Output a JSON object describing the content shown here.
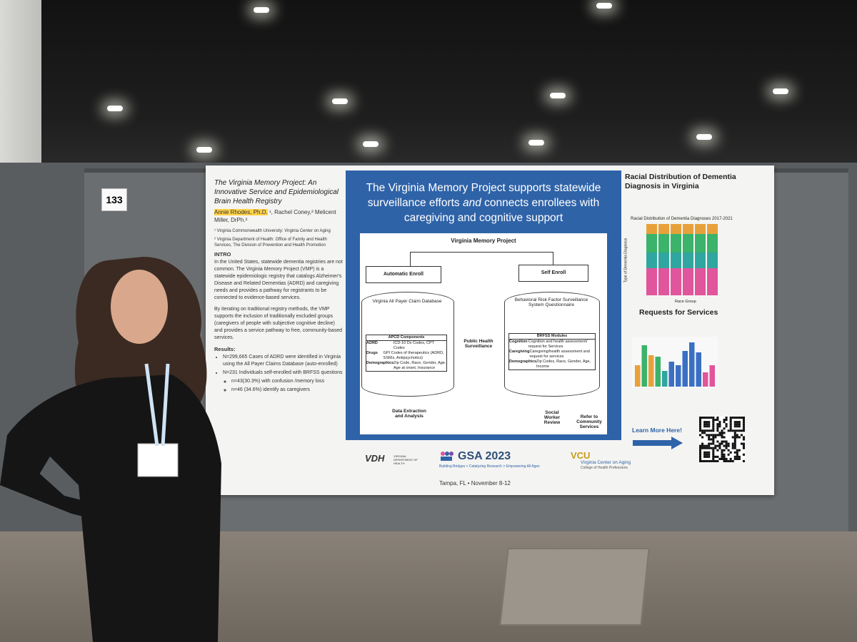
{
  "booth_number": "133",
  "poster": {
    "title": "The Virginia Memory Project: An Innovative Service and Epidemiological Brain Health Registry",
    "authors_highlight": "Annie Rhodes, Ph.D.",
    "authors_rest": "¹, Rachel Coney,² Melicent Miller, DrPh.²",
    "affiliation_1": "¹ Virginia Commonwealth University: Virginia Center on Aging",
    "affiliation_2": "² Virginia Department of Health: Office of Family and Health Services, The Division of Prevention and Health Promotion",
    "intro_heading": "INTRO",
    "intro_p1": "In the United States, statewide dementia registries are not common. The Virginia Memory Project (VMP) is a statewide epidemiologic registry that catalogs Alzheimer's Disease and Related Dementias (ADRD) and caregiving needs and provides a pathway for registrants to be connected to evidence-based services.",
    "intro_p2": "By iterating on traditional registry methods, the VMP supports the inclusion of traditionally excluded groups (caregivers of people with subjective cognitive decline) and provides a service pathway to free, community-based services.",
    "results_heading": "Results:",
    "results": [
      "N=299,665 Cases of ADRD were identified in Virginia using the All Payer Claims Database (auto-enrolled)",
      "N=231 Individuals self-enrolled with BRFSS questions"
    ],
    "sub_results": [
      "n=43(30.3%) with confusion /memory loss",
      "n=46 (34.6%) identify as caregivers"
    ],
    "headline_1": "The Virginia Memory Project supports statewide surveillance efforts ",
    "headline_em": "and",
    "headline_2": " connects enrollees with caregiving and cognitive support",
    "diagram": {
      "title": "Virginia Memory Project",
      "auto": "Automatic Enroll",
      "self": "Self Enroll",
      "apcd": "Virginia All Payer Claim Database",
      "brfss": "Behavioral Risk Factor Surveillance System Questionnaire",
      "apcd_components": "APCD Components",
      "adrd": "ADRD",
      "adrd_val": "ICD-10 Dx Codes, CPT Codes",
      "drugs": "Drugs",
      "drugs_val": "GPI Codes of therapeutics (ADRD, SSRIs, Antipsychotics)",
      "demo": "Demographics",
      "demo_val": "Zip Code, Race, Gender, Age, Age at onset, Insurance",
      "public": "Public Health Surveillance",
      "brfss_modules": "BRFSS Modules",
      "cognition": "Cognition",
      "cognition_val": "Cognition and health assessment/ request for Services",
      "caregiving": "Caregiving",
      "caregiving_val": "Caregiving/health assessment and request for services",
      "demo2_val": "Zip Codes, Race, Gender, Age, Income",
      "extraction": "Data Extraction and Analysis",
      "social": "Social Worker Review",
      "refer": "Refer to Community Services"
    },
    "right_title": "Racial Distribution of Dementia Diagnosis in Virginia",
    "chart1_title": "Racial Distribution of Dementia Diagnoses 2017-2021",
    "chart1_xlabel": "Race Group",
    "chart1_ylabel": "Type of Dementia Diagnosis",
    "requests_title": "Requests for Services",
    "learn_more": "Learn More Here!",
    "vdh": "VDH",
    "vdh_sub": "VIRGINIA DEPARTMENT OF HEALTH",
    "gsa": "GSA 2023",
    "gsa_tag": "Building Bridges > Catalyzing Research > Empowering All Ages",
    "vcu": "VCU",
    "vcu_sub": "Virginia Center on Aging",
    "vcu_sub2": "College of Health Professions",
    "location": "Tampa, FL  •  November 8-12"
  },
  "colors": {
    "poster_blue": "#2f63a8",
    "highlight": "#ffd24a",
    "chart_green": "#3bb36a",
    "chart_pink": "#e0559b",
    "chart_teal": "#2fa7a0",
    "chart_orange": "#e8a13a"
  }
}
